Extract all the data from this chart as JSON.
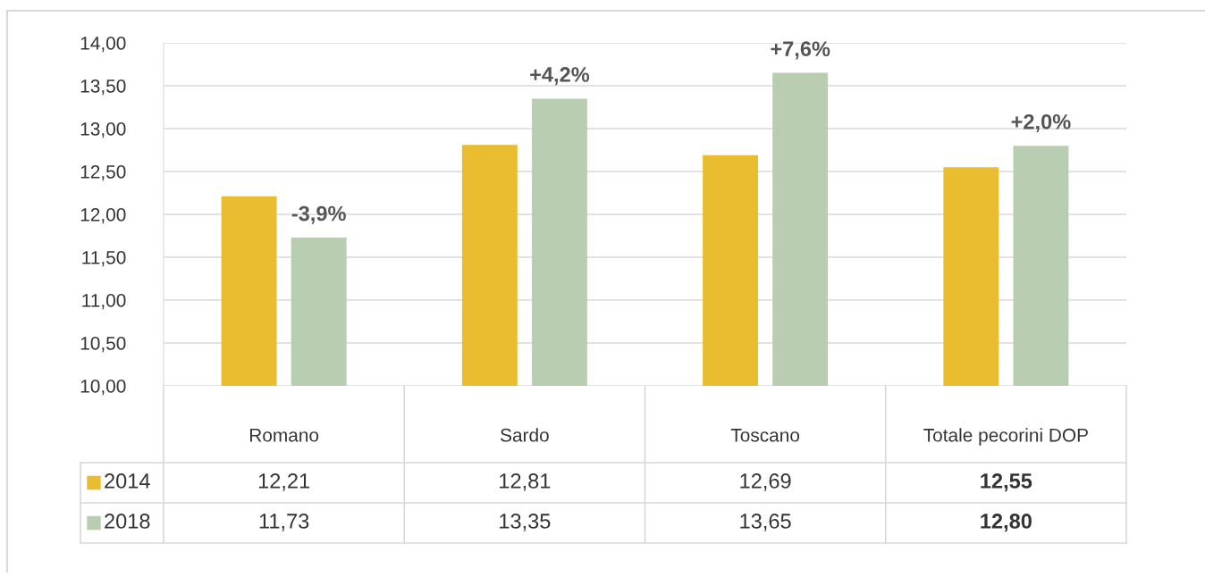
{
  "chart_data": {
    "type": "bar",
    "categories": [
      "Romano",
      "Sardo",
      "Toscano",
      "Totale pecorini DOP"
    ],
    "series": [
      {
        "name": "2014",
        "color": "#e9bd2f",
        "values": [
          12.21,
          12.81,
          12.69,
          12.55
        ],
        "value_labels": [
          "12,21",
          "12,81",
          "12,69",
          "12,55"
        ]
      },
      {
        "name": "2018",
        "color": "#b9cdb0",
        "values": [
          11.73,
          13.35,
          13.65,
          12.8
        ],
        "value_labels": [
          "11,73",
          "13,35",
          "13,65",
          "12,80"
        ]
      }
    ],
    "ylim": [
      10,
      14
    ],
    "yticks": [
      {
        "value": 10,
        "label": "10,00"
      },
      {
        "value": 10.5,
        "label": "10,50"
      },
      {
        "value": 11,
        "label": "11,00"
      },
      {
        "value": 11.5,
        "label": "11,50"
      },
      {
        "value": 12,
        "label": "12,00"
      },
      {
        "value": 12.5,
        "label": "12,50"
      },
      {
        "value": 13,
        "label": "13,00"
      },
      {
        "value": 13.5,
        "label": "13,50"
      },
      {
        "value": 14,
        "label": "14,00"
      }
    ],
    "grid": "y",
    "legend": "bottom left",
    "annotations": [
      "-3,9%",
      "+4,2%",
      "+7,6%",
      "+2,0%"
    ]
  }
}
